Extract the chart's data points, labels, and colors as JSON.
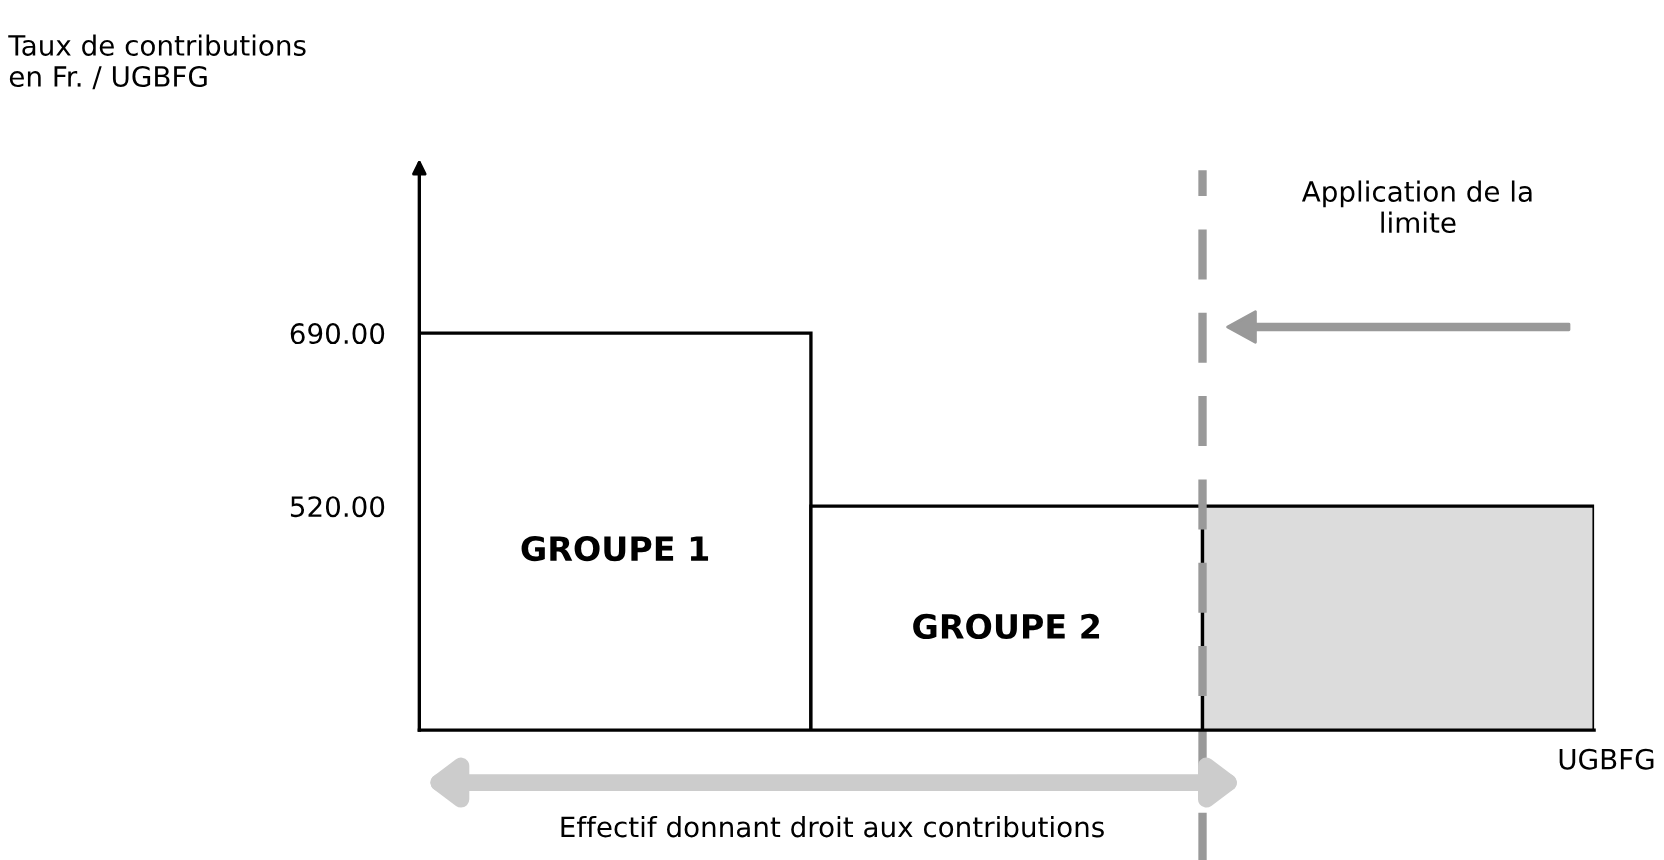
{
  "chart_data": {
    "type": "bar",
    "ylabel": "Taux de contributions\nen Fr. / UGBFG",
    "xlabel": "UGBFG",
    "categories": [
      "GROUPE 1",
      "GROUPE 2",
      null
    ],
    "values": [
      690,
      520,
      520
    ],
    "colors": [
      "#ffffff",
      "#ffffff",
      "#dcdcdc"
    ],
    "ylim": [
      300,
      850
    ],
    "yticks": [
      {
        "value": 520,
        "label": "520.00"
      },
      {
        "value": 690,
        "label": "690.00"
      }
    ],
    "annotations": [
      "Application de la\nlimite",
      "Effectif donnant droit aux contributions"
    ],
    "grid": false
  }
}
